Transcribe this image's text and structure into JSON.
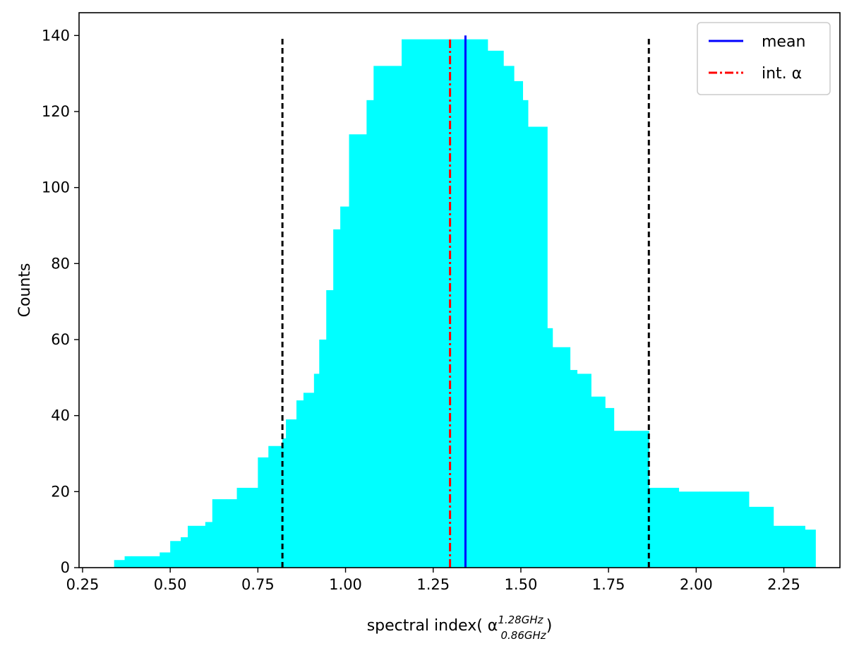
{
  "chart_data": {
    "type": "bar",
    "xlabel": "spectral index( α",
    "xlabel_sup": "1.28GHz",
    "xlabel_sub": "0.86GHz",
    "xlabel_close": ")",
    "ylabel": "Counts",
    "xlim": [
      0.24,
      2.41
    ],
    "ylim": [
      0,
      146
    ],
    "x_ticks": [
      0.25,
      0.5,
      0.75,
      1.0,
      1.25,
      1.5,
      1.75,
      2.0,
      2.25
    ],
    "x_tick_labels": [
      "0.25",
      "0.50",
      "0.75",
      "1.00",
      "1.25",
      "1.50",
      "1.75",
      "2.00",
      "2.25"
    ],
    "y_ticks": [
      0,
      20,
      40,
      60,
      80,
      100,
      120,
      140
    ],
    "y_tick_labels": [
      "0",
      "20",
      "40",
      "60",
      "80",
      "100",
      "120",
      "140"
    ],
    "bar_color": "#00ffff",
    "bins": [
      [
        0.34,
        0.37,
        2
      ],
      [
        0.37,
        0.39,
        3
      ],
      [
        0.39,
        0.47,
        3
      ],
      [
        0.47,
        0.5,
        4
      ],
      [
        0.5,
        0.53,
        7
      ],
      [
        0.53,
        0.55,
        8
      ],
      [
        0.55,
        0.6,
        11
      ],
      [
        0.6,
        0.62,
        12
      ],
      [
        0.62,
        0.66,
        18
      ],
      [
        0.66,
        0.69,
        18
      ],
      [
        0.69,
        0.75,
        21
      ],
      [
        0.75,
        0.78,
        29
      ],
      [
        0.78,
        0.82,
        32
      ],
      [
        0.82,
        0.83,
        34
      ],
      [
        0.83,
        0.86,
        39
      ],
      [
        0.86,
        0.88,
        44
      ],
      [
        0.88,
        0.91,
        46
      ],
      [
        0.91,
        0.925,
        51
      ],
      [
        0.925,
        0.945,
        60
      ],
      [
        0.945,
        0.965,
        73
      ],
      [
        0.965,
        0.985,
        89
      ],
      [
        0.985,
        1.01,
        95
      ],
      [
        1.01,
        1.06,
        114
      ],
      [
        1.06,
        1.08,
        123
      ],
      [
        1.08,
        1.16,
        132
      ],
      [
        1.16,
        1.29,
        139
      ],
      [
        1.29,
        1.405,
        139
      ],
      [
        1.405,
        1.45,
        136
      ],
      [
        1.45,
        1.48,
        132
      ],
      [
        1.48,
        1.505,
        128
      ],
      [
        1.505,
        1.52,
        123
      ],
      [
        1.52,
        1.575,
        116
      ],
      [
        1.575,
        1.59,
        63
      ],
      [
        1.59,
        1.64,
        58
      ],
      [
        1.64,
        1.66,
        52
      ],
      [
        1.66,
        1.7,
        51
      ],
      [
        1.7,
        1.74,
        45
      ],
      [
        1.74,
        1.765,
        42
      ],
      [
        1.765,
        1.815,
        36
      ],
      [
        1.815,
        1.865,
        36
      ],
      [
        1.865,
        1.95,
        21
      ],
      [
        1.95,
        2.01,
        20
      ],
      [
        2.01,
        2.15,
        20
      ],
      [
        2.15,
        2.22,
        16
      ],
      [
        2.22,
        2.27,
        11
      ],
      [
        2.27,
        2.31,
        11
      ],
      [
        2.31,
        2.34,
        10
      ]
    ],
    "vertical_lines": [
      {
        "kind": "bound",
        "x": 0.82,
        "y_top": 140,
        "color": "#000000",
        "style": "dashed"
      },
      {
        "kind": "bound",
        "x": 1.865,
        "y_top": 140,
        "color": "#000000",
        "style": "dashed"
      },
      {
        "kind": "int",
        "x": 1.298,
        "y_top": 139,
        "color": "#ff0000",
        "style": "dashdot"
      },
      {
        "kind": "mean",
        "x": 1.342,
        "y_top": 140,
        "color": "#0000ff",
        "style": "solid"
      }
    ],
    "legend": {
      "placement": "top-right",
      "entries": [
        {
          "label": "mean",
          "color": "#0000ff",
          "style": "solid"
        },
        {
          "label": "int. α",
          "color": "#ff0000",
          "style": "dashdot"
        }
      ]
    }
  }
}
